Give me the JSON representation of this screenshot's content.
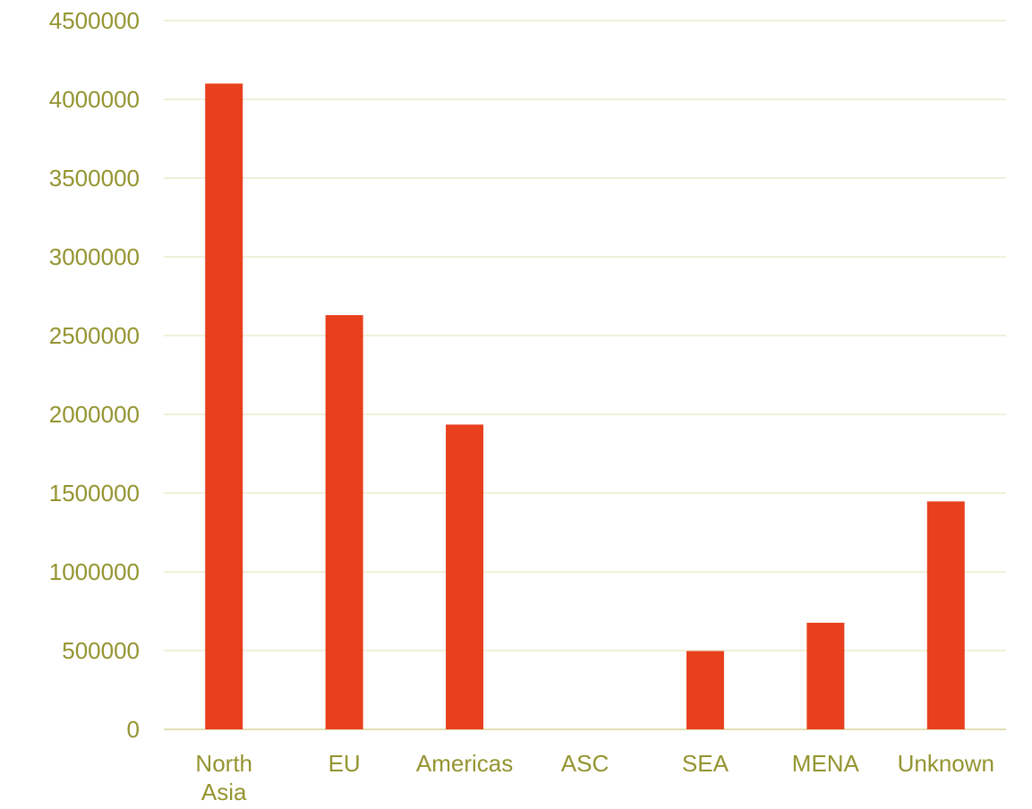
{
  "chart_data": {
    "type": "bar",
    "categories": [
      "North Asia",
      "EU",
      "Americas",
      "ASC",
      "SEA",
      "MENA",
      "Unknown"
    ],
    "category_lines": [
      [
        "North",
        "Asia"
      ],
      [
        "EU"
      ],
      [
        "Americas"
      ],
      [
        "ASC"
      ],
      [
        "SEA"
      ],
      [
        "MENA"
      ],
      [
        "Unknown"
      ]
    ],
    "values": [
      4100000,
      2630000,
      1935000,
      0,
      497000,
      677000,
      1447000
    ],
    "ylim": [
      0,
      4500000
    ],
    "yticks": [
      0,
      500000,
      1000000,
      1500000,
      2000000,
      2500000,
      3000000,
      3500000,
      4000000,
      4500000
    ],
    "ytick_labels": [
      "0",
      "500000",
      "1000000",
      "1500000",
      "2000000",
      "2500000",
      "3000000",
      "3500000",
      "4000000",
      "4500000"
    ],
    "grid": true,
    "legend": "none"
  },
  "colors": {
    "bar": "#e8401c",
    "text": "#949431",
    "grid": "#ecebcd",
    "axis": "#e2e0b4"
  }
}
